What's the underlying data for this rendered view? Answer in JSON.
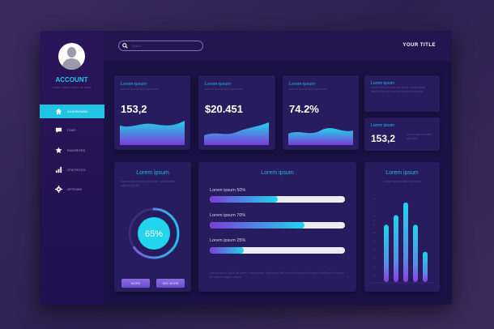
{
  "sidebar": {
    "account": "ACCOUNT",
    "account_sub": "Lorem ipsum dolor sit amet",
    "items": [
      {
        "label": "DASHBOARD",
        "icon": "home-icon"
      },
      {
        "label": "CHAT",
        "icon": "chat-icon"
      },
      {
        "label": "FAVORITES",
        "icon": "star-icon"
      },
      {
        "label": "STATISTICS",
        "icon": "bar-chart-icon"
      },
      {
        "label": "OPTIONS",
        "icon": "gear-icon"
      }
    ]
  },
  "header": {
    "search_placeholder": "Search",
    "title": "YOUR TITLE"
  },
  "stats": [
    {
      "title": "Lorem ipsum",
      "sub": "Lorem ipsum dolor sit amet",
      "value": "153,2"
    },
    {
      "title": "Lorem ipsum",
      "sub": "Lorem ipsum dolor sit amet",
      "value": "$20.451"
    },
    {
      "title": "Lorem ipsum",
      "sub": "Lorem ipsum dolor sit amet",
      "value": "74.2%"
    }
  ],
  "info_card": {
    "title": "Lorem ipsum",
    "sub": "Lorem ipsum dolor sit amet, consectetur adipiscing elit, sed do eiusmod tempor"
  },
  "small_stat": {
    "title": "Lorem ipsum",
    "value": "153,2",
    "sub": "Lorem ipsum dolor sit amet"
  },
  "donut": {
    "title": "Lorem ipsum",
    "sub": "Lorem ipsum dolor sit amet, consectetur adipiscing elit",
    "value_label": "65%",
    "percent": 65,
    "buttons": [
      "MORE",
      "SEE MORE"
    ]
  },
  "progress": {
    "title": "Lorem ipsum",
    "items": [
      {
        "label": "Lorem ipsum 50%",
        "percent": 50
      },
      {
        "label": "Lorem ipsum 70%",
        "percent": 70
      },
      {
        "label": "Lorem ipsum 25%",
        "percent": 25
      }
    ],
    "footer": "Lorem ipsum dolor sit amet, consectetur adipiscing elit, sed do eiusmod tempor incididunt ut labore et dolore magna aliqua."
  },
  "bar_card": {
    "title": "Lorem ipsum",
    "sub": "Lorem ipsum dolor sit amet"
  },
  "chart_data": {
    "type": "bar",
    "values": [
      72,
      84,
      100,
      72,
      38
    ],
    "ylim": [
      0,
      110
    ],
    "grid": false
  },
  "colors": {
    "accent": "#22c4e6",
    "purple": "#7a3cd8"
  }
}
